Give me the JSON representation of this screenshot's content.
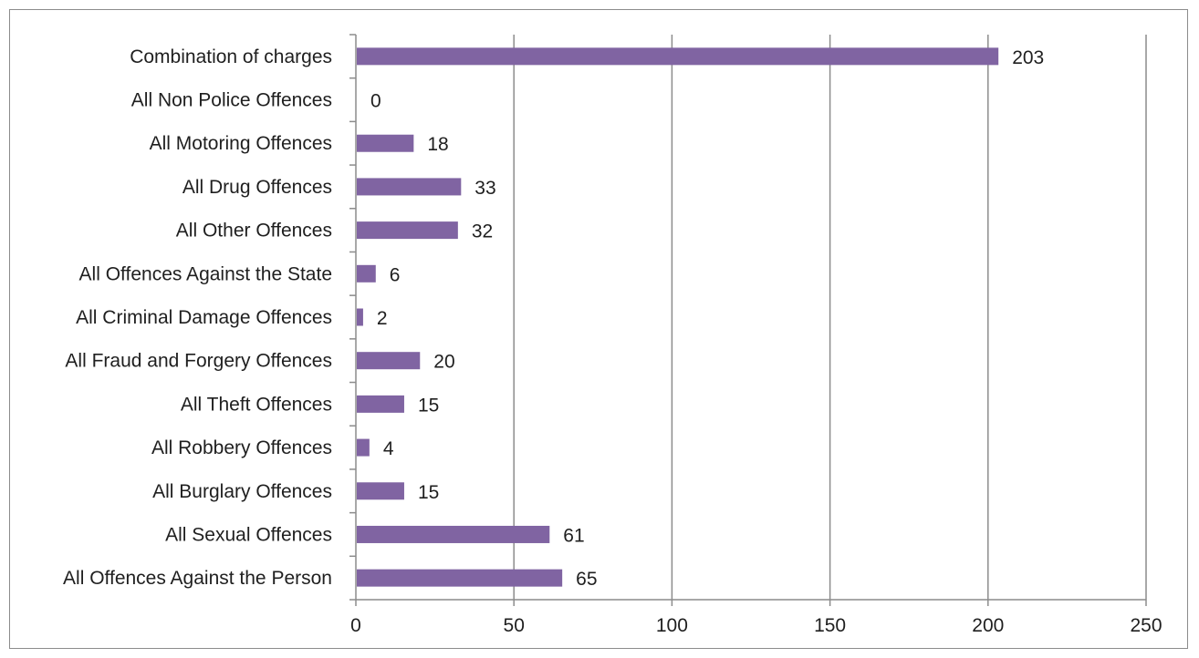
{
  "chart_data": {
    "type": "bar",
    "orientation": "horizontal",
    "categories": [
      "Combination of charges",
      "All Non Police Offences",
      "All Motoring Offences",
      "All Drug Offences",
      "All Other Offences",
      "All Offences Against the State",
      "All Criminal Damage Offences",
      "All Fraud and Forgery Offences",
      "All Theft Offences",
      "All Robbery Offences",
      "All Burglary Offences",
      "All Sexual Offences",
      "All Offences Against the Person"
    ],
    "values": [
      203,
      0,
      18,
      33,
      32,
      6,
      2,
      20,
      15,
      4,
      15,
      61,
      65
    ],
    "data_labels": [
      "203",
      "0",
      "18",
      "33",
      "32",
      "6",
      "2",
      "20",
      "15",
      "4",
      "15",
      "61",
      "65"
    ],
    "title": "",
    "xlabel": "",
    "ylabel": "",
    "xlim": [
      0,
      250
    ],
    "xticks": [
      0,
      50,
      100,
      150,
      200,
      250
    ],
    "xtick_labels": [
      "0",
      "50",
      "100",
      "150",
      "200",
      "250"
    ],
    "grid": true,
    "legend": "none",
    "bar_color": "#8064a2",
    "grid_color": "#8c8c8c"
  }
}
